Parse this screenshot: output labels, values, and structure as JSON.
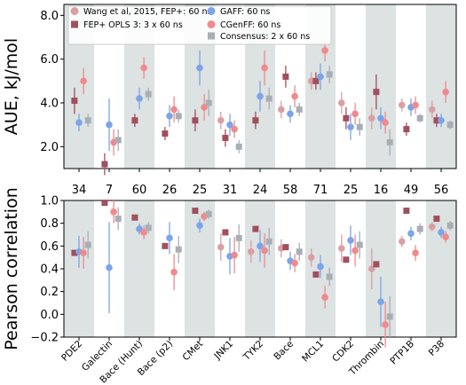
{
  "chart_data": [
    {
      "type": "scatter",
      "panel": "top",
      "ylabel": "AUE, kJ/mol",
      "ylim": [
        1.0,
        8.5
      ],
      "yticks": [
        "2.0",
        "4.0",
        "6.0",
        "8.0"
      ],
      "categories": [
        "PDE2",
        "Galectin",
        "Bace (Hunt)",
        "Bace (p2)",
        "CMet",
        "JNK1",
        "TYK2",
        "Bace",
        "MCL1",
        "CDK2",
        "Thrombin",
        "PTP1B",
        "P38"
      ],
      "counts": [
        "34",
        "7",
        "60",
        "26",
        "25",
        "31",
        "24",
        "58",
        "71",
        "25",
        "16",
        "49",
        "56"
      ],
      "legend_placement": "top-left",
      "series": [
        {
          "name": "Wang et al, 2015, FEP+: 60 ns",
          "color": "#d9a0a4",
          "marker": "circle",
          "values": [
            null,
            null,
            null,
            null,
            null,
            3.2,
            null,
            3.7,
            5.0,
            4.0,
            3.3,
            3.9,
            3.7
          ],
          "err": [
            null,
            null,
            null,
            null,
            null,
            0.4,
            null,
            0.4,
            0.4,
            0.5,
            0.5,
            0.3,
            0.4
          ]
        },
        {
          "name": "FEP+ OPLS 3: 3 x 60 ns",
          "color": "#a0505c",
          "marker": "square",
          "values": [
            4.1,
            1.2,
            3.2,
            2.6,
            3.2,
            2.4,
            3.2,
            5.2,
            5.0,
            3.3,
            4.5,
            2.8,
            3.2
          ],
          "err": [
            0.6,
            0.5,
            0.3,
            0.3,
            0.5,
            0.4,
            0.4,
            0.5,
            0.4,
            0.5,
            0.8,
            0.3,
            0.3
          ]
        },
        {
          "name": "GAFF: 60 ns",
          "color": "#7ca4e8",
          "marker": "circle",
          "values": [
            3.1,
            3.0,
            4.2,
            3.4,
            5.6,
            3.0,
            4.3,
            3.5,
            5.2,
            2.9,
            3.3,
            3.8,
            3.2
          ],
          "err": [
            0.4,
            1.2,
            0.5,
            0.5,
            0.8,
            0.5,
            0.7,
            0.4,
            0.6,
            0.6,
            0.5,
            0.4,
            0.3
          ]
        },
        {
          "name": "CGenFF: 60 ns",
          "color": "#f08a8c",
          "marker": "circle",
          "values": [
            5.0,
            2.2,
            5.6,
            3.7,
            3.8,
            2.8,
            5.6,
            4.3,
            6.4,
            3.5,
            3.1,
            3.9,
            4.5
          ],
          "err": [
            0.6,
            0.6,
            0.5,
            0.6,
            0.6,
            0.4,
            0.8,
            0.5,
            0.5,
            0.5,
            0.5,
            0.4,
            0.5
          ]
        },
        {
          "name": "Consensus: 2 x 60 ns",
          "color": "#a8aeb6",
          "marker": "square",
          "values": [
            3.2,
            2.3,
            4.4,
            3.4,
            4.0,
            2.0,
            4.2,
            3.7,
            5.3,
            2.9,
            2.2,
            3.3,
            3.0
          ],
          "err": [
            0.3,
            0.5,
            0.3,
            0.3,
            0.6,
            0.3,
            0.5,
            0.3,
            0.4,
            0.4,
            0.6,
            0.2,
            0.2
          ]
        }
      ]
    },
    {
      "type": "scatter",
      "panel": "bottom",
      "ylabel": "Pearson correlation",
      "ylim": [
        -0.2,
        1.0
      ],
      "yticks": [
        "−0.2",
        "0.0",
        "0.2",
        "0.4",
        "0.6",
        "0.8",
        "1.0"
      ],
      "categories": [
        "PDE2",
        "Galectin",
        "Bace (Hunt)",
        "Bace (p2)",
        "CMet",
        "JNK1",
        "TYK2",
        "Bace",
        "MCL1",
        "CDK2",
        "Thrombin",
        "PTP1B",
        "P38"
      ],
      "series": [
        {
          "name": "Wang et al, 2015, FEP+: 60 ns",
          "color": "#d9a0a4",
          "marker": "circle",
          "values": [
            null,
            null,
            null,
            null,
            null,
            0.59,
            0.55,
            0.58,
            0.5,
            0.58,
            0.4,
            0.64,
            0.77
          ],
          "err": [
            null,
            null,
            null,
            null,
            null,
            0.12,
            0.1,
            0.08,
            0.08,
            0.12,
            0.18,
            0.05,
            0.04
          ]
        },
        {
          "name": "FEP+ OPLS 3: 3 x 60 ns",
          "color": "#a0505c",
          "marker": "square",
          "values": [
            0.54,
            0.98,
            0.85,
            0.6,
            0.91,
            0.72,
            0.75,
            0.59,
            0.35,
            0.48,
            0.44,
            0.91,
            0.84
          ]
        },
        {
          "name": "GAFF: 60 ns",
          "color": "#7ca4e8",
          "marker": "circle",
          "values": [
            0.55,
            0.41,
            0.75,
            0.67,
            0.78,
            0.51,
            0.6,
            0.47,
            0.42,
            0.65,
            0.11,
            0.71,
            0.72
          ],
          "err": [
            0.14,
            0.4,
            0.05,
            0.14,
            0.06,
            0.16,
            0.14,
            0.08,
            0.1,
            0.13,
            0.22,
            0.06,
            0.05
          ]
        },
        {
          "name": "CGenFF: 60 ns",
          "color": "#f08a8c",
          "marker": "circle",
          "values": [
            0.54,
            0.9,
            0.72,
            0.37,
            0.86,
            0.52,
            0.56,
            0.45,
            0.15,
            0.56,
            -0.09,
            0.54,
            0.68
          ],
          "err": [
            0.14,
            0.1,
            0.06,
            0.16,
            0.04,
            0.16,
            0.15,
            0.08,
            0.1,
            0.14,
            0.2,
            0.07,
            0.05
          ]
        },
        {
          "name": "Consensus: 2 x 60 ns",
          "color": "#a8aeb6",
          "marker": "square",
          "values": [
            0.61,
            0.84,
            0.76,
            0.57,
            0.88,
            0.67,
            0.64,
            0.55,
            0.33,
            0.61,
            -0.02,
            0.75,
            0.78
          ],
          "err": [
            0.12,
            0.1,
            0.05,
            0.12,
            0.04,
            0.12,
            0.12,
            0.08,
            0.08,
            0.12,
            0.18,
            0.05,
            0.04
          ]
        }
      ]
    }
  ]
}
